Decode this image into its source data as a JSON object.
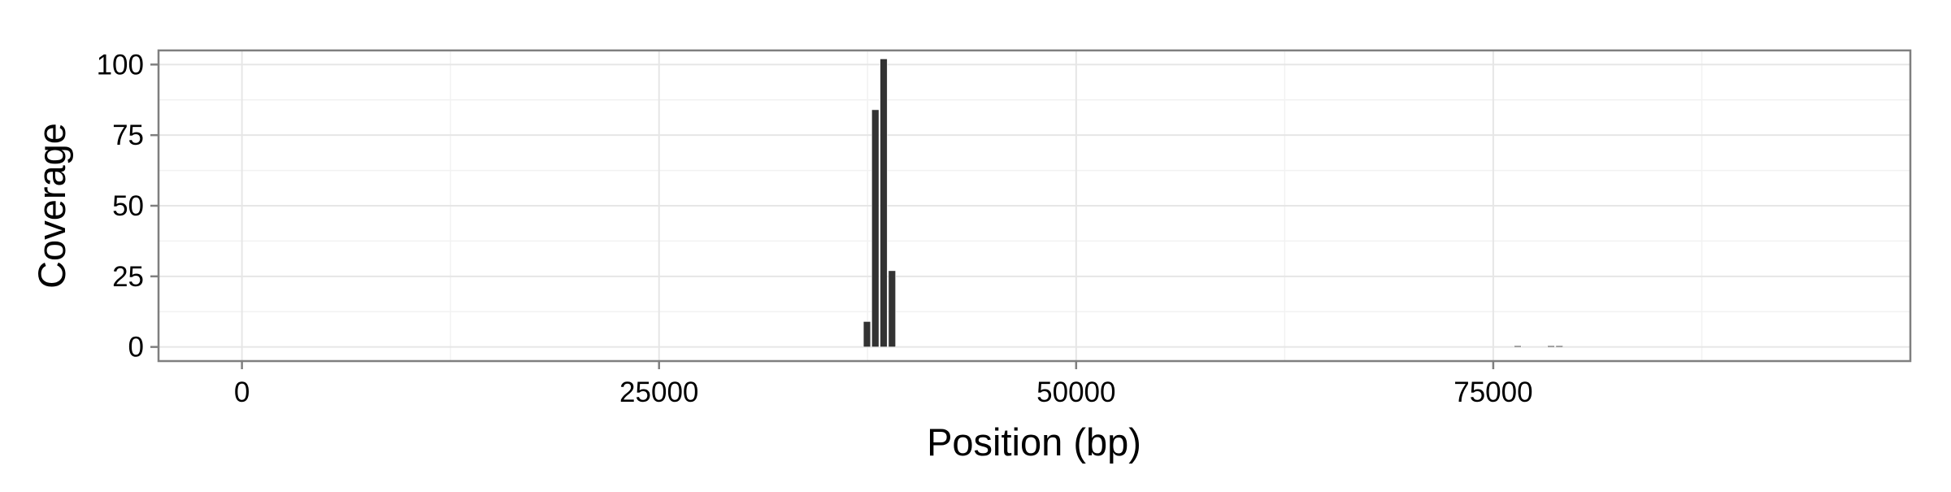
{
  "chart_data": {
    "type": "bar",
    "title": "",
    "xlabel": "Position (bp)",
    "ylabel": "Coverage",
    "xlim": [
      -5000,
      100000
    ],
    "ylim": [
      -5,
      105
    ],
    "x_ticks": [
      0,
      25000,
      50000,
      75000
    ],
    "x_tick_labels": [
      "0",
      "25000",
      "50000",
      "75000"
    ],
    "y_ticks": [
      0,
      25,
      50,
      75,
      100
    ],
    "y_tick_labels": [
      "0",
      "25",
      "50",
      "75",
      "100"
    ],
    "grid": true,
    "legend": "none",
    "bin_width": 500,
    "series": [
      {
        "x": [
          37500,
          38000,
          38500,
          39000,
          76500,
          78500,
          79000
        ],
        "values": [
          9,
          84,
          102,
          27,
          0.4,
          0.4,
          0.4
        ]
      }
    ],
    "colors": {
      "bar_fill": "#333333",
      "panel_border": "#7f7f7f",
      "grid_major": "#e6e6e6",
      "grid_minor": "#f2f2f2",
      "background": "#ffffff"
    }
  }
}
